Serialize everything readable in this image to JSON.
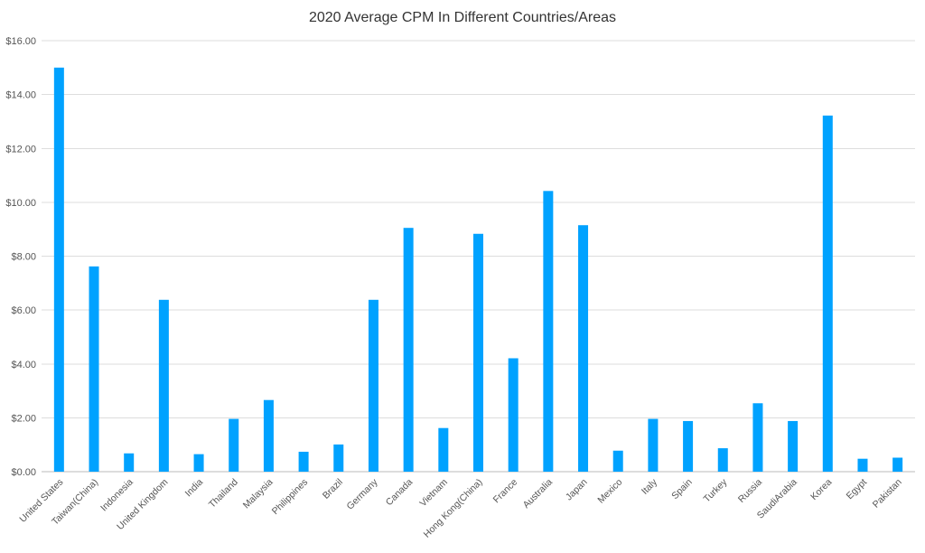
{
  "chart_data": {
    "type": "bar",
    "title": "2020 Average CPM In Different Countries/Areas",
    "xlabel": "",
    "ylabel": "",
    "ylim": [
      0,
      16
    ],
    "yticks": [
      "$0.00",
      "$2.00",
      "$4.00",
      "$6.00",
      "$8.00",
      "$10.00",
      "$12.00",
      "$14.00",
      "$16.00"
    ],
    "grid": true,
    "bar_color": "#00a2ff",
    "categories": [
      "United States",
      "Taiwan(China)",
      "Indonesia",
      "United Kingdom",
      "India",
      "Thailand",
      "Malaysia",
      "Philippines",
      "Brazil",
      "Germany",
      "Canada",
      "Vietnam",
      "Hong Kong(China)",
      "France",
      "Australia",
      "Japan",
      "Mexico",
      "Italy",
      "Spain",
      "Turkey",
      "Russia",
      "SaudiArabia",
      "Korea",
      "Egypt",
      "Pakistan"
    ],
    "values": [
      15.0,
      7.62,
      0.68,
      6.38,
      0.65,
      1.96,
      2.66,
      0.74,
      1.01,
      6.38,
      9.05,
      1.62,
      8.83,
      4.21,
      10.42,
      9.15,
      0.78,
      1.96,
      1.88,
      0.87,
      2.54,
      1.88,
      13.22,
      0.48,
      0.52
    ]
  }
}
